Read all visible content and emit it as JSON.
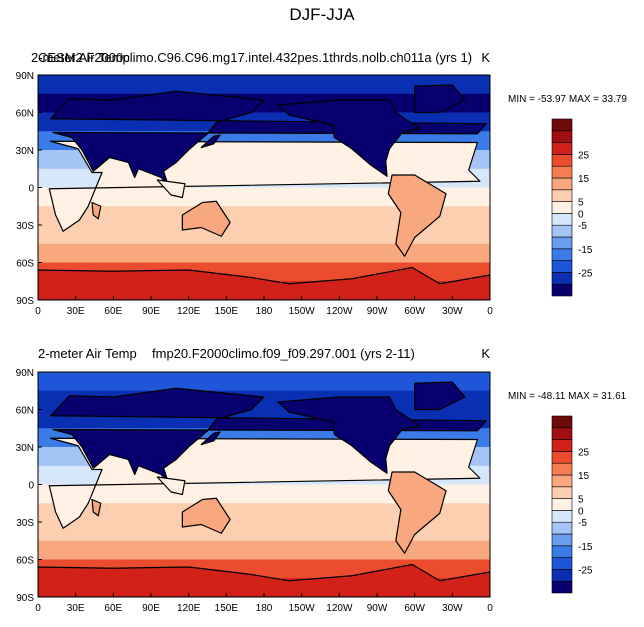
{
  "figure": {
    "title": "DJF-JJA"
  },
  "colorscale": {
    "colors": [
      "#08006f",
      "#0a2fb3",
      "#1f55d8",
      "#3b7be8",
      "#6a9cef",
      "#a3c4f5",
      "#d6e6fb",
      "#fff1e4",
      "#fccfb1",
      "#f9a77f",
      "#f57d52",
      "#ea4c2d",
      "#d12118",
      "#a30f10",
      "#6e0a0a"
    ],
    "labels": [
      "-25",
      "-15",
      "-5",
      "0",
      "5",
      "15",
      "25"
    ]
  },
  "chart_data": [
    {
      "type": "heatmap",
      "title": "2-meter Air Temp",
      "case_label": "CESM2 F2000climo.C96.C96.mg17.intel.432pes.1thrds.nolb.ch011a (yrs 1)",
      "units": "K",
      "stats": "MIN = -53.97 MAX =  33.79",
      "min": -53.97,
      "max": 33.79,
      "x_ticks": [
        "0",
        "30E",
        "60E",
        "90E",
        "120E",
        "150E",
        "180",
        "150W",
        "120W",
        "90W",
        "60W",
        "30W",
        "0"
      ],
      "y_ticks": [
        "90N",
        "60N",
        "30N",
        "0",
        "30S",
        "60S",
        "90S"
      ],
      "zonal_bands_lat": [
        90,
        75,
        60,
        45,
        30,
        15,
        0,
        -15,
        -30,
        -45,
        -60,
        -75,
        -90
      ],
      "zonal_bands_value": [
        -22,
        -30,
        -34,
        -26,
        -12,
        -4,
        2,
        6,
        9,
        6,
        18,
        26,
        27
      ]
    },
    {
      "type": "heatmap",
      "title": "2-meter Air Temp",
      "case_label": "fmp20.F2000climo.f09_f09.297.001 (yrs 2-11)",
      "units": "K",
      "stats": "MIN = -48.11 MAX =  31.61",
      "min": -48.11,
      "max": 31.61,
      "x_ticks": [
        "0",
        "30E",
        "60E",
        "90E",
        "120E",
        "150E",
        "180",
        "150W",
        "120W",
        "90W",
        "60W",
        "30W",
        "0"
      ],
      "y_ticks": [
        "90N",
        "60N",
        "30N",
        "0",
        "30S",
        "60S",
        "90S"
      ],
      "zonal_bands_lat": [
        90,
        75,
        60,
        45,
        30,
        15,
        0,
        -15,
        -30,
        -45,
        -60,
        -75,
        -90
      ],
      "zonal_bands_value": [
        -20,
        -28,
        -32,
        -24,
        -11,
        -4,
        2,
        6,
        9,
        6,
        17,
        25,
        26
      ]
    }
  ]
}
